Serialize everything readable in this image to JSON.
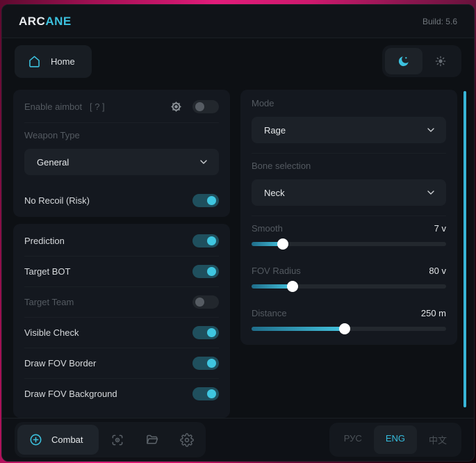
{
  "titlebar": {
    "brand_primary": "ARC",
    "brand_accent": "ANE",
    "build": "Build: 5.6"
  },
  "nav": {
    "home_label": "Home"
  },
  "aim_panel": {
    "enable": {
      "label": "Enable aimbot",
      "hint": "[ ? ]",
      "on": false,
      "dim": true
    },
    "weapon_type": {
      "label": "Weapon Type",
      "value": "General"
    },
    "no_recoil": {
      "label": "No Recoil (Risk)",
      "on": true,
      "dim": false
    }
  },
  "target_panel": {
    "toggles": [
      {
        "label": "Prediction",
        "on": true,
        "dim": false
      },
      {
        "label": "Target BOT",
        "on": true,
        "dim": false
      },
      {
        "label": "Target Team",
        "on": false,
        "dim": true
      },
      {
        "label": "Visible Check",
        "on": true,
        "dim": false
      },
      {
        "label": "Draw FOV Border",
        "on": true,
        "dim": false
      },
      {
        "label": "Draw FOV Background",
        "on": true,
        "dim": false
      }
    ]
  },
  "settings_panel": {
    "mode": {
      "label": "Mode",
      "value": "Rage"
    },
    "bone": {
      "label": "Bone selection",
      "value": "Neck"
    },
    "sliders": [
      {
        "label": "Smooth",
        "value": "7 v",
        "percent": 16
      },
      {
        "label": "FOV Radius",
        "value": "80 v",
        "percent": 21
      },
      {
        "label": "Distance",
        "value": "250 m",
        "percent": 48
      }
    ]
  },
  "bottom_bar": {
    "combat_label": "Combat",
    "languages": [
      {
        "label": "РУС",
        "active": false
      },
      {
        "label": "ENG",
        "active": true
      },
      {
        "label": "中文",
        "active": false
      }
    ]
  },
  "colors": {
    "accent": "#3cc1de"
  }
}
